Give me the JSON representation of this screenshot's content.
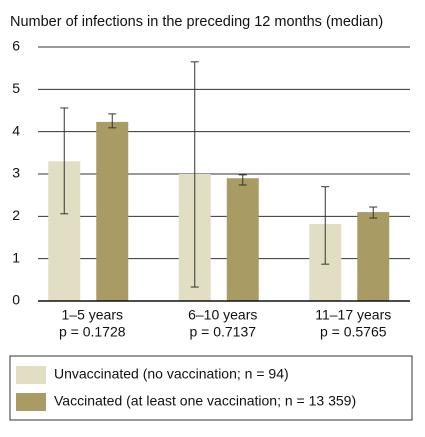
{
  "chart_data": {
    "type": "bar",
    "title": "Number of infections in the preceding 12 months (median)",
    "categories": [
      "1–5 years",
      "6–10 years",
      "11–17 years"
    ],
    "p_values": [
      "p = 0.1728",
      "p = 0.7137",
      "p = 0.5765"
    ],
    "series": [
      {
        "name": "Unvaccinated (no vaccination; n = 94)",
        "color": "#e2dec3",
        "values": [
          3.3,
          3.0,
          1.82
        ],
        "lower": [
          2.06,
          0.33,
          0.87
        ],
        "upper": [
          4.56,
          5.65,
          2.7
        ]
      },
      {
        "name": "Vaccinated (at least one vaccination; n = 13 359)",
        "color": "#a99b64",
        "values": [
          4.23,
          2.9,
          2.1
        ],
        "lower": [
          4.09,
          2.74,
          1.96
        ],
        "upper": [
          4.42,
          2.98,
          2.22
        ]
      }
    ],
    "ylim": [
      0,
      6
    ],
    "yticks": [
      0,
      1,
      2,
      3,
      4,
      5,
      6
    ],
    "grid": true,
    "legend": "bottom"
  }
}
